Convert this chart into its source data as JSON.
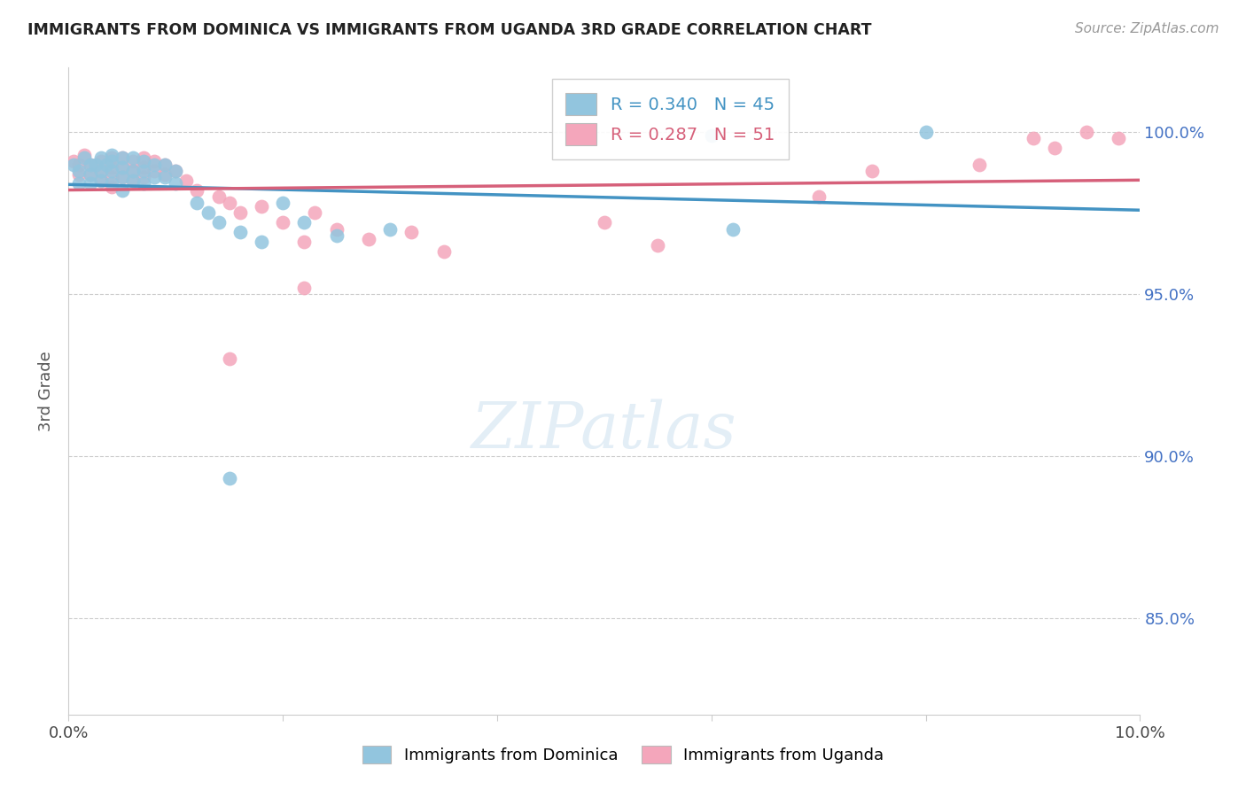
{
  "title": "IMMIGRANTS FROM DOMINICA VS IMMIGRANTS FROM UGANDA 3RD GRADE CORRELATION CHART",
  "source": "Source: ZipAtlas.com",
  "ylabel": "3rd Grade",
  "xlim": [
    0.0,
    0.1
  ],
  "ylim": [
    0.82,
    1.02
  ],
  "xtick_positions": [
    0.0,
    0.02,
    0.04,
    0.06,
    0.08,
    0.1
  ],
  "xticklabels": [
    "0.0%",
    "",
    "",
    "",
    "",
    "10.0%"
  ],
  "ytick_positions": [
    0.85,
    0.9,
    0.95,
    1.0
  ],
  "ytick_labels": [
    "85.0%",
    "90.0%",
    "95.0%",
    "100.0%"
  ],
  "dominica_R": 0.34,
  "dominica_N": 45,
  "uganda_R": 0.287,
  "uganda_N": 51,
  "dominica_color": "#92c5de",
  "uganda_color": "#f4a6bb",
  "dominica_line_color": "#4393c3",
  "uganda_line_color": "#d6607a",
  "background_color": "#ffffff",
  "dominica_x": [
    0.0005,
    0.001,
    0.001,
    0.0015,
    0.002,
    0.002,
    0.002,
    0.0025,
    0.003,
    0.003,
    0.003,
    0.0035,
    0.004,
    0.004,
    0.004,
    0.004,
    0.005,
    0.005,
    0.005,
    0.005,
    0.006,
    0.006,
    0.006,
    0.007,
    0.007,
    0.007,
    0.008,
    0.008,
    0.009,
    0.009,
    0.01,
    0.01,
    0.012,
    0.013,
    0.014,
    0.016,
    0.018,
    0.02,
    0.022,
    0.025,
    0.03,
    0.015,
    0.06,
    0.062,
    0.08
  ],
  "dominica_y": [
    0.99,
    0.988,
    0.984,
    0.992,
    0.99,
    0.987,
    0.984,
    0.99,
    0.992,
    0.988,
    0.985,
    0.99,
    0.993,
    0.991,
    0.988,
    0.984,
    0.992,
    0.989,
    0.986,
    0.982,
    0.992,
    0.988,
    0.985,
    0.991,
    0.988,
    0.984,
    0.99,
    0.986,
    0.99,
    0.986,
    0.988,
    0.984,
    0.978,
    0.975,
    0.972,
    0.969,
    0.966,
    0.978,
    0.972,
    0.968,
    0.97,
    0.893,
    0.999,
    0.97,
    1.0
  ],
  "uganda_x": [
    0.0005,
    0.001,
    0.001,
    0.0015,
    0.002,
    0.002,
    0.003,
    0.003,
    0.003,
    0.004,
    0.004,
    0.004,
    0.004,
    0.005,
    0.005,
    0.005,
    0.006,
    0.006,
    0.006,
    0.007,
    0.007,
    0.007,
    0.008,
    0.008,
    0.009,
    0.009,
    0.01,
    0.011,
    0.012,
    0.014,
    0.015,
    0.016,
    0.018,
    0.02,
    0.022,
    0.023,
    0.025,
    0.028,
    0.032,
    0.035,
    0.022,
    0.015,
    0.05,
    0.055,
    0.07,
    0.075,
    0.085,
    0.09,
    0.092,
    0.095,
    0.098
  ],
  "uganda_y": [
    0.991,
    0.99,
    0.987,
    0.993,
    0.99,
    0.987,
    0.991,
    0.988,
    0.985,
    0.992,
    0.989,
    0.986,
    0.983,
    0.992,
    0.989,
    0.986,
    0.991,
    0.988,
    0.985,
    0.992,
    0.989,
    0.986,
    0.991,
    0.988,
    0.99,
    0.987,
    0.988,
    0.985,
    0.982,
    0.98,
    0.978,
    0.975,
    0.977,
    0.972,
    0.966,
    0.975,
    0.97,
    0.967,
    0.969,
    0.963,
    0.952,
    0.93,
    0.972,
    0.965,
    0.98,
    0.988,
    0.99,
    0.998,
    0.995,
    1.0,
    0.998
  ]
}
